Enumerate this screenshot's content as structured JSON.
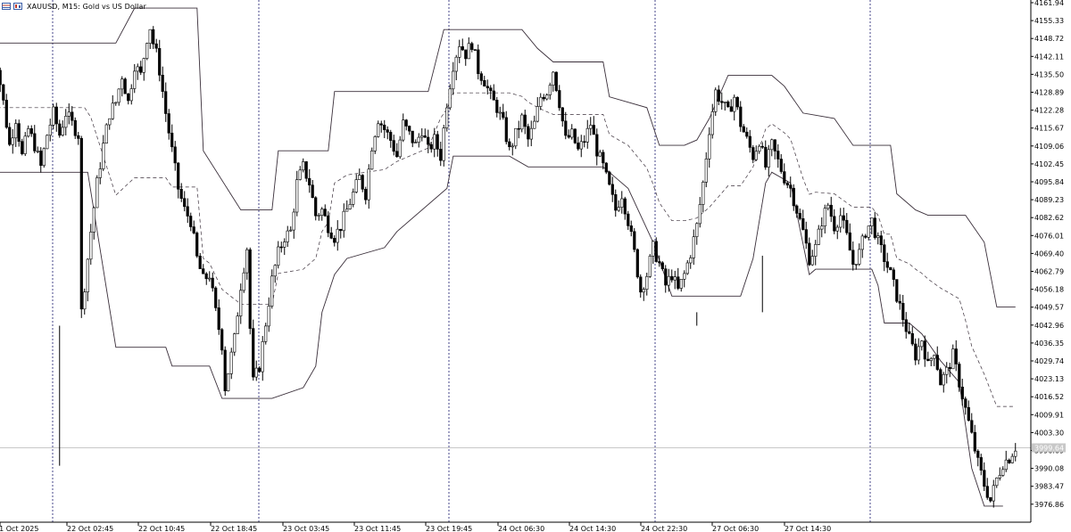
{
  "header": {
    "symbol_title": "XAUUSD, M15:  Gold vs US Dollar"
  },
  "icons": [
    "grid-menu-icon",
    "chart-type-icon"
  ],
  "colors": {
    "background": "#ffffff",
    "candle": "#000000",
    "channel": "#3a2f3a",
    "separator": "#1a1a6e",
    "price_line": "#c8c8c8",
    "price_label_bg": "#c8c8c8"
  },
  "chart_data": {
    "type": "candlestick",
    "symbol": "XAUUSD",
    "timeframe": "M15",
    "ylim": [
      3972,
      4166
    ],
    "grid": false,
    "y_ticks": [
      "4161.94",
      "4155.33",
      "4148.72",
      "4142.11",
      "4135.50",
      "4128.89",
      "4122.28",
      "4115.67",
      "4109.06",
      "4102.45",
      "4095.84",
      "4089.23",
      "4082.62",
      "4076.01",
      "4069.40",
      "4062.79",
      "4056.18",
      "4049.57",
      "4042.96",
      "4036.35",
      "4029.74",
      "4023.13",
      "4016.52",
      "4009.91",
      "4003.30",
      "3996.69",
      "3990.08",
      "3983.47",
      "3976.86"
    ],
    "x_ticks": [
      "21 Oct 2025",
      "22 Oct 02:45",
      "22 Oct 10:45",
      "22 Oct 18:45",
      "23 Oct 03:45",
      "23 Oct 11:45",
      "23 Oct 19:45",
      "24 Oct 06:30",
      "24 Oct 14:30",
      "24 Oct 22:30",
      "27 Oct 06:30",
      "27 Oct 14:30"
    ],
    "current_price": "3999.64",
    "price_path": [
      [
        0,
        4140
      ],
      [
        2,
        4142
      ],
      [
        4,
        4128
      ],
      [
        6,
        4112
      ],
      [
        8,
        4122
      ],
      [
        10,
        4108
      ],
      [
        12,
        4118
      ],
      [
        14,
        4112
      ],
      [
        16,
        4104
      ],
      [
        18,
        4116
      ],
      [
        20,
        4124
      ],
      [
        22,
        4116
      ],
      [
        24,
        4124
      ],
      [
        26,
        4120
      ],
      [
        28,
        4116
      ],
      [
        29,
        4050
      ],
      [
        30,
        4060
      ],
      [
        32,
        4080
      ],
      [
        34,
        4098
      ],
      [
        36,
        4112
      ],
      [
        38,
        4124
      ],
      [
        40,
        4128
      ],
      [
        42,
        4138
      ],
      [
        44,
        4128
      ],
      [
        46,
        4142
      ],
      [
        48,
        4138
      ],
      [
        50,
        4152
      ],
      [
        51,
        4156
      ],
      [
        52,
        4150
      ],
      [
        53,
        4146
      ],
      [
        54,
        4140
      ],
      [
        56,
        4124
      ],
      [
        58,
        4110
      ],
      [
        60,
        4096
      ],
      [
        62,
        4088
      ],
      [
        64,
        4084
      ],
      [
        66,
        4070
      ],
      [
        68,
        4062
      ],
      [
        70,
        4064
      ],
      [
        72,
        4050
      ],
      [
        74,
        4038
      ],
      [
        75,
        4022
      ],
      [
        76,
        4028
      ],
      [
        78,
        4040
      ],
      [
        80,
        4060
      ],
      [
        82,
        4074
      ],
      [
        83,
        4044
      ],
      [
        84,
        4024
      ],
      [
        86,
        4030
      ],
      [
        88,
        4046
      ],
      [
        90,
        4062
      ],
      [
        92,
        4072
      ],
      [
        94,
        4078
      ],
      [
        96,
        4080
      ],
      [
        98,
        4098
      ],
      [
        100,
        4104
      ],
      [
        102,
        4098
      ],
      [
        104,
        4086
      ],
      [
        106,
        4088
      ],
      [
        108,
        4082
      ],
      [
        110,
        4078
      ],
      [
        112,
        4082
      ],
      [
        114,
        4088
      ],
      [
        116,
        4094
      ],
      [
        118,
        4100
      ],
      [
        120,
        4094
      ],
      [
        122,
        4112
      ],
      [
        124,
        4122
      ],
      [
        126,
        4118
      ],
      [
        128,
        4114
      ],
      [
        130,
        4108
      ],
      [
        132,
        4120
      ],
      [
        134,
        4116
      ],
      [
        136,
        4112
      ],
      [
        138,
        4118
      ],
      [
        140,
        4110
      ],
      [
        142,
        4114
      ],
      [
        144,
        4108
      ],
      [
        146,
        4128
      ],
      [
        148,
        4142
      ],
      [
        150,
        4150
      ],
      [
        152,
        4146
      ],
      [
        154,
        4150
      ],
      [
        156,
        4140
      ],
      [
        158,
        4136
      ],
      [
        160,
        4130
      ],
      [
        162,
        4126
      ],
      [
        164,
        4120
      ],
      [
        166,
        4110
      ],
      [
        168,
        4116
      ],
      [
        170,
        4122
      ],
      [
        172,
        4114
      ],
      [
        174,
        4120
      ],
      [
        176,
        4130
      ],
      [
        178,
        4132
      ],
      [
        180,
        4140
      ],
      [
        182,
        4128
      ],
      [
        184,
        4114
      ],
      [
        186,
        4116
      ],
      [
        188,
        4110
      ],
      [
        190,
        4114
      ],
      [
        192,
        4120
      ],
      [
        194,
        4110
      ],
      [
        196,
        4104
      ],
      [
        198,
        4096
      ],
      [
        200,
        4088
      ],
      [
        202,
        4094
      ],
      [
        204,
        4084
      ],
      [
        206,
        4072
      ],
      [
        208,
        4058
      ],
      [
        210,
        4064
      ],
      [
        212,
        4074
      ],
      [
        214,
        4068
      ],
      [
        216,
        4060
      ],
      [
        218,
        4064
      ],
      [
        220,
        4058
      ],
      [
        222,
        4064
      ],
      [
        224,
        4072
      ],
      [
        226,
        4082
      ],
      [
        228,
        4098
      ],
      [
        230,
        4118
      ],
      [
        232,
        4132
      ],
      [
        234,
        4128
      ],
      [
        236,
        4124
      ],
      [
        238,
        4130
      ],
      [
        240,
        4120
      ],
      [
        242,
        4114
      ],
      [
        244,
        4108
      ],
      [
        246,
        4114
      ],
      [
        248,
        4104
      ],
      [
        250,
        4112
      ],
      [
        252,
        4106
      ],
      [
        254,
        4100
      ],
      [
        256,
        4096
      ],
      [
        258,
        4088
      ],
      [
        260,
        4080
      ],
      [
        262,
        4070
      ],
      [
        264,
        4074
      ],
      [
        266,
        4084
      ],
      [
        268,
        4090
      ],
      [
        270,
        4082
      ],
      [
        272,
        4086
      ],
      [
        274,
        4078
      ],
      [
        276,
        4068
      ],
      [
        278,
        4072
      ],
      [
        280,
        4080
      ],
      [
        282,
        4084
      ],
      [
        284,
        4076
      ],
      [
        286,
        4070
      ],
      [
        288,
        4064
      ],
      [
        290,
        4056
      ],
      [
        292,
        4048
      ],
      [
        294,
        4040
      ],
      [
        296,
        4034
      ],
      [
        298,
        4040
      ],
      [
        300,
        4030
      ],
      [
        302,
        4036
      ],
      [
        304,
        4024
      ],
      [
        306,
        4028
      ],
      [
        308,
        4034
      ],
      [
        310,
        4024
      ],
      [
        312,
        4014
      ],
      [
        314,
        4004
      ],
      [
        316,
        3994
      ],
      [
        318,
        3986
      ],
      [
        320,
        3980
      ],
      [
        322,
        3988
      ],
      [
        324,
        3994
      ],
      [
        326,
        3996
      ],
      [
        328,
        4000
      ]
    ],
    "channel_upper": [
      [
        0,
        4150
      ],
      [
        28,
        4150
      ],
      [
        29,
        4150
      ],
      [
        40,
        4150
      ],
      [
        46,
        4163
      ],
      [
        66,
        4163
      ],
      [
        68,
        4110
      ],
      [
        80,
        4088
      ],
      [
        90,
        4088
      ],
      [
        92,
        4110
      ],
      [
        108,
        4110
      ],
      [
        110,
        4132
      ],
      [
        140,
        4132
      ],
      [
        145,
        4155
      ],
      [
        170,
        4155
      ],
      [
        175,
        4148
      ],
      [
        180,
        4143
      ],
      [
        196,
        4143
      ],
      [
        198,
        4130
      ],
      [
        210,
        4126
      ],
      [
        214,
        4112
      ],
      [
        222,
        4112
      ],
      [
        226,
        4114
      ],
      [
        230,
        4122
      ],
      [
        236,
        4138
      ],
      [
        250,
        4138
      ],
      [
        254,
        4134
      ],
      [
        260,
        4124
      ],
      [
        270,
        4122
      ],
      [
        276,
        4112
      ],
      [
        288,
        4112
      ],
      [
        290,
        4094
      ],
      [
        296,
        4088
      ],
      [
        300,
        4086
      ],
      [
        312,
        4086
      ],
      [
        318,
        4076
      ],
      [
        322,
        4052
      ],
      [
        328,
        4052
      ]
    ],
    "channel_lower": [
      [
        0,
        4102
      ],
      [
        28,
        4102
      ],
      [
        29,
        4102
      ],
      [
        31,
        4102
      ],
      [
        40,
        4037
      ],
      [
        56,
        4037
      ],
      [
        58,
        4030
      ],
      [
        70,
        4030
      ],
      [
        74,
        4018
      ],
      [
        90,
        4018
      ],
      [
        100,
        4022
      ],
      [
        104,
        4030
      ],
      [
        106,
        4050
      ],
      [
        110,
        4064
      ],
      [
        114,
        4070
      ],
      [
        126,
        4074
      ],
      [
        130,
        4080
      ],
      [
        146,
        4096
      ],
      [
        148,
        4108
      ],
      [
        166,
        4108
      ],
      [
        172,
        4104
      ],
      [
        184,
        4104
      ],
      [
        196,
        4104
      ],
      [
        204,
        4096
      ],
      [
        212,
        4076
      ],
      [
        218,
        4056
      ],
      [
        228,
        4056
      ],
      [
        240,
        4056
      ],
      [
        244,
        4070
      ],
      [
        248,
        4098
      ],
      [
        250,
        4102
      ],
      [
        256,
        4098
      ],
      [
        262,
        4064
      ],
      [
        264,
        4066
      ],
      [
        282,
        4066
      ],
      [
        284,
        4060
      ],
      [
        286,
        4046
      ],
      [
        294,
        4046
      ],
      [
        298,
        4042
      ],
      [
        304,
        4032
      ],
      [
        310,
        4024
      ],
      [
        314,
        3992
      ],
      [
        318,
        3978
      ],
      [
        322,
        3978
      ],
      [
        324,
        3978
      ]
    ]
  }
}
